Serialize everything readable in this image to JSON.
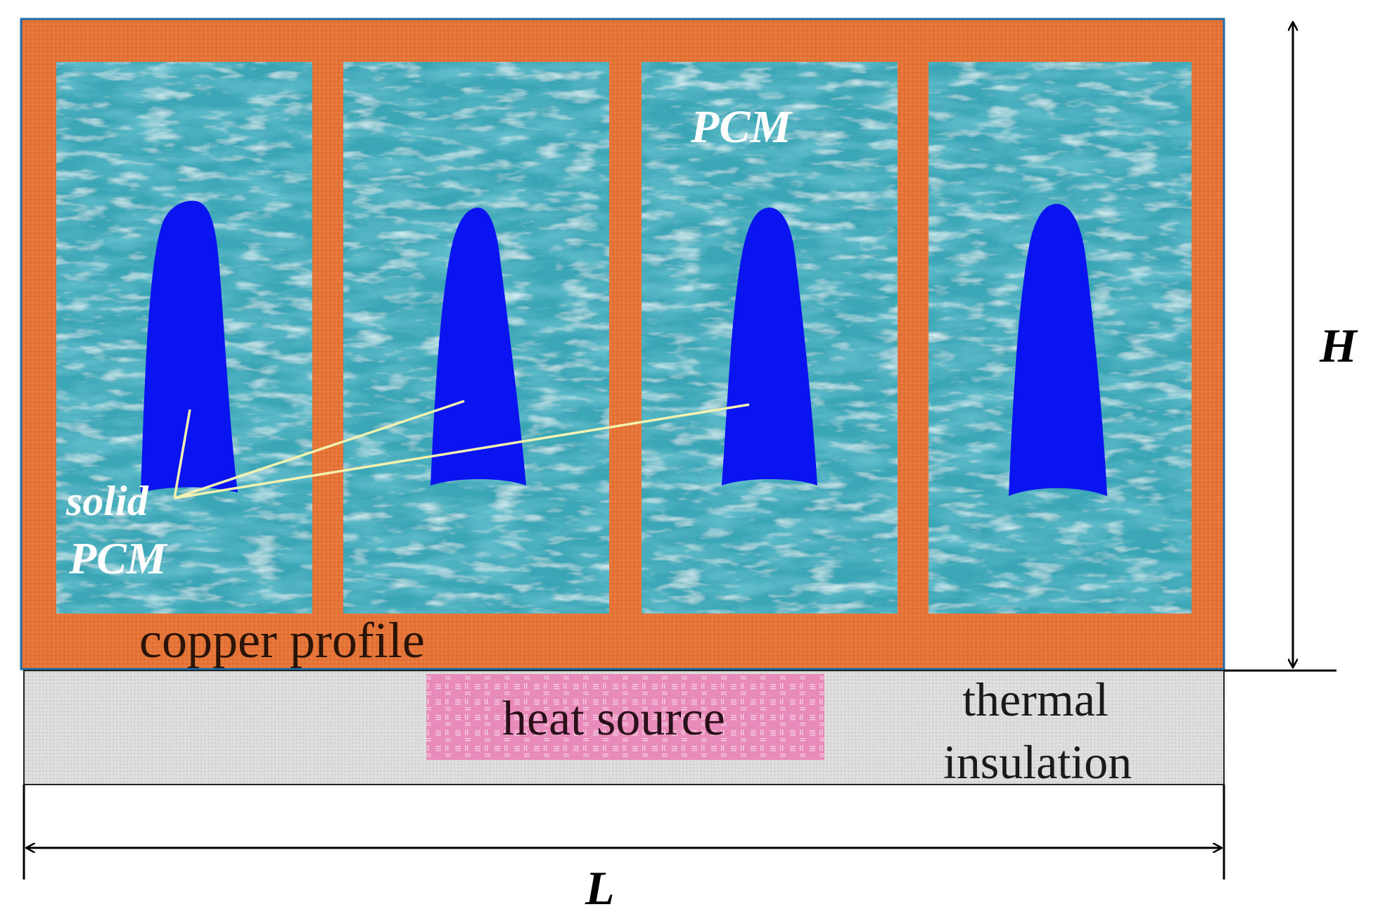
{
  "labels": {
    "pcm": "PCM",
    "solid_line1": "solid",
    "solid_line2": "PCM",
    "copper_profile": "copper profile",
    "heat_source": "heat source",
    "insulation_line1": "thermal",
    "insulation_line2": "insulation",
    "height": "H",
    "length": "L"
  },
  "colors": {
    "copper": "#e57438",
    "pcm_liquid": "#3aa6b6",
    "pcm_solid": "#0a14f0",
    "insulation": "#dcdcdc",
    "heat_source": "#e88aba",
    "leader_line": "#f4f2b0",
    "outline": "#1c6ea8",
    "dimension": "#000000"
  },
  "cell_count": 4
}
